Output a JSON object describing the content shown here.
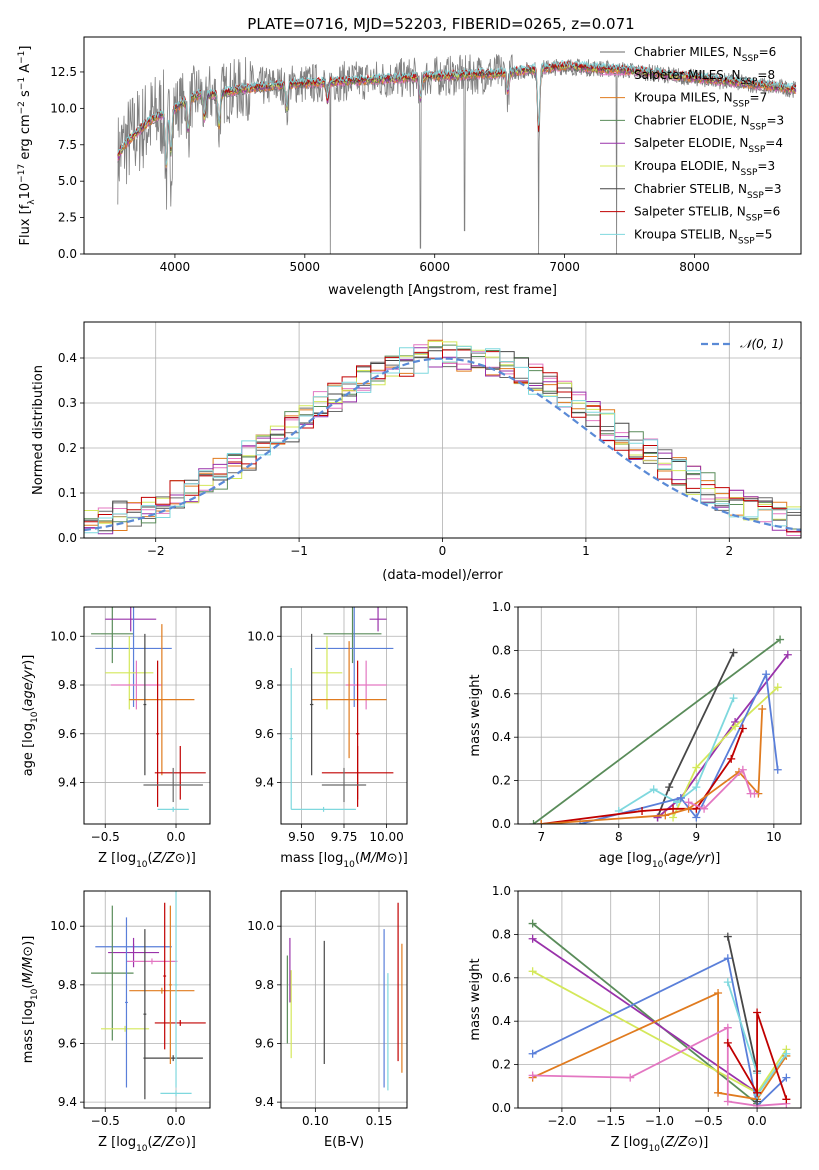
{
  "figure_title": "PLATE=0716, MJD=52203, FIBERID=0265, z=0.071",
  "colors": {
    "Chabrier MILES": "#6a6a6a",
    "Salpeter MILES": "#e377c2",
    "Kroupa MILES": "#e07b1f",
    "Chabrier ELODIE": "#5a8c5a",
    "Salpeter ELODIE": "#9932aa",
    "Kroupa ELODIE": "#d4e85a",
    "Chabrier STELIB": "#474747",
    "Salpeter STELIB": "#c00000",
    "Kroupa STELIB": "#7fd8de",
    "extra_blue": "#5a7fd9"
  },
  "chart_data": [
    {
      "id": "spectrum",
      "type": "line",
      "title": "PLATE=0716, MJD=52203, FIBERID=0265, z=0.071",
      "xlabel": "wavelength [Angstrom, rest frame]",
      "ylabel_parts": [
        "Flux [f",
        "λ",
        "10",
        "−17",
        " erg cm",
        "−2",
        " s",
        "−1",
        " A",
        "−1",
        "]"
      ],
      "xlim": [
        3300,
        8820
      ],
      "ylim": [
        0,
        14.9
      ],
      "xticks": [
        4000,
        5000,
        6000,
        7000,
        8000
      ],
      "xtick_labels": [
        "4000",
        "5000",
        "6000",
        "7000",
        "8000"
      ],
      "yticks": [
        0,
        2.5,
        5,
        7.5,
        10,
        12.5
      ],
      "ytick_labels": [
        "0.0",
        "2.5",
        "5.0",
        "7.5",
        "10.0",
        "12.5"
      ],
      "data_range": [
        3560,
        8780
      ],
      "continuum": {
        "x": [
          3560,
          3600,
          3700,
          3800,
          3900,
          4000,
          4100,
          4200,
          4300,
          4500,
          4800,
          5200,
          5600,
          6000,
          6500,
          7000,
          7500,
          8000,
          8500,
          8780
        ],
        "y": [
          6.6,
          7.4,
          8.3,
          9.1,
          9.6,
          10.0,
          10.6,
          11.0,
          10.9,
          11.3,
          11.6,
          11.8,
          12.0,
          12.2,
          12.4,
          12.9,
          12.6,
          12.1,
          11.6,
          11.3
        ]
      },
      "absorption_dips": [
        [
          3934,
          4.5
        ],
        [
          3969,
          3.5
        ],
        [
          4102,
          2.5
        ],
        [
          4227,
          2.0
        ],
        [
          4340,
          2.5
        ],
        [
          4861,
          2.0
        ],
        [
          5175,
          1.5
        ],
        [
          5890,
          1.8
        ],
        [
          6563,
          1.5
        ],
        [
          6800,
          5.0
        ]
      ],
      "spikes": [
        [
          5195,
          0.0
        ],
        [
          5890,
          0.4
        ],
        [
          6230,
          1.6
        ],
        [
          6800,
          0.0
        ],
        [
          7400,
          0.0
        ]
      ],
      "legend": [
        {
          "name": "Chabrier MILES",
          "nssp": "6"
        },
        {
          "name": "Salpeter MILES",
          "nssp": "8"
        },
        {
          "name": "Kroupa MILES",
          "nssp": "7"
        },
        {
          "name": "Chabrier ELODIE",
          "nssp": "3"
        },
        {
          "name": "Salpeter ELODIE",
          "nssp": "4"
        },
        {
          "name": "Kroupa ELODIE",
          "nssp": "3"
        },
        {
          "name": "Chabrier STELIB",
          "nssp": "3"
        },
        {
          "name": "Salpeter STELIB",
          "nssp": "6"
        },
        {
          "name": "Kroupa STELIB",
          "nssp": "5"
        }
      ],
      "legend_suffix": "SSP"
    },
    {
      "id": "residuals",
      "type": "histogram",
      "xlabel": "(data-model)/error",
      "ylabel": "Normed distribution",
      "xlim": [
        -2.5,
        2.5
      ],
      "ylim": [
        0,
        0.48
      ],
      "xticks": [
        -2,
        -1,
        0,
        1,
        2
      ],
      "xtick_labels": [
        "−2",
        "−1",
        "0",
        "1",
        "2"
      ],
      "yticks": [
        0,
        0.1,
        0.2,
        0.3,
        0.4
      ],
      "ytick_labels": [
        "0.0",
        "0.1",
        "0.2",
        "0.3",
        "0.4"
      ],
      "bin_width": 0.1,
      "bin_start": -2.5,
      "grid": true,
      "legend": "𝒩(0, 1)",
      "legend_placement": "top-right"
    },
    {
      "id": "age-vs-Z",
      "type": "errorbar",
      "xlabel": "Z [log10(Z/Z⊙)]",
      "ylabel": "age [log10(age/yr)]",
      "xlim": [
        -0.65,
        0.24
      ],
      "ylim": [
        9.23,
        10.12
      ],
      "xticks": [
        -0.5,
        0.0
      ],
      "xtick_labels": [
        "−0.5",
        "0.0"
      ],
      "yticks": [
        9.4,
        9.6,
        9.8,
        10.0
      ],
      "ytick_labels": [
        "9.4",
        "9.6",
        "9.8",
        "10.0"
      ],
      "points": [
        {
          "color": "Chabrier ELODIE",
          "x": -0.45,
          "xerr": 0.15,
          "y": 10.01,
          "yerr": 0.12
        },
        {
          "color": "Salpeter ELODIE",
          "x": -0.32,
          "xerr": 0.18,
          "y": 10.07,
          "yerr": 0.05
        },
        {
          "color": "extra_blue",
          "x": -0.3,
          "xerr": 0.27,
          "y": 9.95,
          "yerr": 0.24
        },
        {
          "color": "Kroupa ELODIE",
          "x": -0.33,
          "xerr": 0.17,
          "y": 9.85,
          "yerr": 0.15
        },
        {
          "color": "Salpeter MILES",
          "x": -0.28,
          "xerr": 0.18,
          "y": 9.8,
          "yerr": 0.1
        },
        {
          "color": "Kroupa MILES",
          "x": -0.1,
          "xerr": 0.23,
          "y": 9.74,
          "yerr": 0.31
        },
        {
          "color": "Chabrier STELIB",
          "x": -0.22,
          "xerr": 0.01,
          "y": 9.72,
          "yerr": 0.29
        },
        {
          "color": "Salpeter STELIB",
          "x": -0.13,
          "xerr": 0.01,
          "y": 9.6,
          "yerr": 0.3
        },
        {
          "color": "Salpeter STELIB",
          "x": 0.03,
          "xerr": 0.18,
          "y": 9.44,
          "yerr": 0.11
        },
        {
          "color": "Chabrier MILES",
          "x": -0.02,
          "xerr": 0.21,
          "y": 9.39,
          "yerr": 0.07
        },
        {
          "color": "Kroupa STELIB",
          "x": -0.02,
          "xerr": 0.11,
          "y": 9.29,
          "yerr": 0.01
        }
      ]
    },
    {
      "id": "age-vs-mass",
      "type": "errorbar",
      "xlabel": "mass [log10(M/M⊙)]",
      "ylabel": "",
      "xlim": [
        9.38,
        10.12
      ],
      "ylim": [
        9.23,
        10.12
      ],
      "xticks": [
        9.5,
        9.75,
        10.0
      ],
      "xtick_labels": [
        "9.50",
        "9.75",
        "10.00"
      ],
      "yticks": [
        9.4,
        9.6,
        9.8,
        10.0
      ],
      "ytick_labels": [
        "9.4",
        "9.6",
        "9.8",
        "10.0"
      ],
      "points": [
        {
          "color": "Salpeter ELODIE",
          "x": 9.95,
          "xerr": 0.05,
          "y": 10.07,
          "yerr": 0.05
        },
        {
          "color": "Chabrier ELODIE",
          "x": 9.8,
          "xerr": 0.17,
          "y": 10.01,
          "yerr": 0.12
        },
        {
          "color": "extra_blue",
          "x": 9.81,
          "xerr": 0.23,
          "y": 9.95,
          "yerr": 0.24
        },
        {
          "color": "Kroupa ELODIE",
          "x": 9.65,
          "xerr": 0.09,
          "y": 9.85,
          "yerr": 0.15
        },
        {
          "color": "Salpeter MILES",
          "x": 9.88,
          "xerr": 0.12,
          "y": 9.8,
          "yerr": 0.1
        },
        {
          "color": "Kroupa MILES",
          "x": 9.78,
          "xerr": 0.22,
          "y": 9.74,
          "yerr": 0.24
        },
        {
          "color": "Chabrier STELIB",
          "x": 9.56,
          "xerr": 0.01,
          "y": 9.72,
          "yerr": 0.29
        },
        {
          "color": "Salpeter STELIB",
          "x": 9.83,
          "xerr": 0.01,
          "y": 9.6,
          "yerr": 0.3
        },
        {
          "color": "Salpeter STELIB",
          "x": 9.83,
          "xerr": 0.21,
          "y": 9.44,
          "yerr": 0.11
        },
        {
          "color": "Chabrier MILES",
          "x": 9.75,
          "xerr": 0.13,
          "y": 9.39,
          "yerr": 0.07
        },
        {
          "color": "Kroupa STELIB",
          "x": 9.63,
          "xerr": 0.19,
          "y": 9.29,
          "yerr": 0.01
        },
        {
          "color": "Kroupa STELIB",
          "x": 9.44,
          "xerr": 0.01,
          "y": 9.58,
          "yerr": 0.29
        }
      ]
    },
    {
      "id": "weight-vs-age",
      "type": "line",
      "xlabel": "age [log10(age/yr)]",
      "ylabel": "mass weight",
      "xlim": [
        6.7,
        10.35
      ],
      "ylim": [
        0,
        1
      ],
      "xticks": [
        7,
        8,
        9,
        10
      ],
      "xtick_labels": [
        "7",
        "8",
        "9",
        "10"
      ],
      "yticks": [
        0,
        0.2,
        0.4,
        0.6,
        0.8,
        1.0
      ],
      "ytick_labels": [
        "0.0",
        "0.2",
        "0.4",
        "0.6",
        "0.8",
        "1.0"
      ],
      "series": [
        {
          "color": "Chabrier ELODIE",
          "x": [
            6.9,
            10.08
          ],
          "y": [
            0.0,
            0.85
          ]
        },
        {
          "color": "Chabrier STELIB",
          "x": [
            8.5,
            8.65,
            9.48
          ],
          "y": [
            0.03,
            0.17,
            0.79
          ]
        },
        {
          "color": "Salpeter ELODIE",
          "x": [
            8.5,
            8.8,
            9.5,
            10.18
          ],
          "y": [
            0.03,
            0.12,
            0.47,
            0.78
          ]
        },
        {
          "color": "Kroupa ELODIE",
          "x": [
            8.7,
            9.0,
            9.5,
            10.05
          ],
          "y": [
            0.03,
            0.26,
            0.45,
            0.63
          ]
        },
        {
          "color": "Kroupa STELIB",
          "x": [
            8.0,
            8.45,
            8.75,
            9.0,
            9.48
          ],
          "y": [
            0.06,
            0.16,
            0.1,
            0.17,
            0.58
          ]
        },
        {
          "color": "extra_blue",
          "x": [
            7.5,
            8.8,
            9.0,
            9.9,
            10.05
          ],
          "y": [
            0.0,
            0.12,
            0.03,
            0.69,
            0.25
          ]
        },
        {
          "color": "Salpeter STELIB",
          "x": [
            7.0,
            8.3,
            8.7,
            9.0,
            9.45,
            9.6
          ],
          "y": [
            0.0,
            0.06,
            0.07,
            0.07,
            0.3,
            0.44
          ]
        },
        {
          "color": "Kroupa MILES",
          "x": [
            7.0,
            8.6,
            8.9,
            9.55,
            9.8,
            9.85
          ],
          "y": [
            0.0,
            0.04,
            0.07,
            0.24,
            0.14,
            0.53
          ]
        },
        {
          "color": "Salpeter MILES",
          "x": [
            8.9,
            9.1,
            9.6,
            9.7,
            9.75
          ],
          "y": [
            0.1,
            0.07,
            0.25,
            0.14,
            0.14
          ]
        }
      ]
    },
    {
      "id": "mass-vs-Z",
      "type": "errorbar",
      "xlabel": "Z [log10(Z/Z⊙)]",
      "ylabel": "mass [log10(M/M⊙)]",
      "xlim": [
        -0.65,
        0.24
      ],
      "ylim": [
        9.38,
        10.12
      ],
      "xticks": [
        -0.5,
        0.0
      ],
      "xtick_labels": [
        "−0.5",
        "0.0"
      ],
      "yticks": [
        9.4,
        9.6,
        9.8,
        10.0
      ],
      "ytick_labels": [
        "9.4",
        "9.6",
        "9.8",
        "10.0"
      ],
      "points": [
        {
          "color": "extra_blue",
          "x": -0.3,
          "xerr": 0.27,
          "y": 9.93,
          "yerr": 0.01
        },
        {
          "color": "Salpeter ELODIE",
          "x": -0.3,
          "xerr": 0.18,
          "y": 9.91,
          "yerr": 0.05
        },
        {
          "color": "Salpeter MILES",
          "x": -0.17,
          "xerr": 0.18,
          "y": 9.88,
          "yerr": 0.01
        },
        {
          "color": "Chabrier ELODIE",
          "x": -0.45,
          "xerr": 0.15,
          "y": 9.84,
          "yerr": 0.23
        },
        {
          "color": "Kroupa MILES",
          "x": -0.1,
          "xerr": 0.23,
          "y": 9.78,
          "yerr": 0.01
        },
        {
          "color": "Kroupa ELODIE",
          "x": -0.36,
          "xerr": 0.17,
          "y": 9.65,
          "yerr": 0.01
        },
        {
          "color": "Salpeter STELIB",
          "x": 0.03,
          "xerr": 0.18,
          "y": 9.67,
          "yerr": 0.01
        },
        {
          "color": "Chabrier STELIB",
          "x": -0.02,
          "xerr": 0.21,
          "y": 9.55,
          "yerr": 0.01
        },
        {
          "color": "Kroupa STELIB",
          "x": 0.0,
          "xerr": 0.11,
          "y": 9.43,
          "yerr": 0.01
        },
        {
          "color": "Chabrier STELIB",
          "x": -0.22,
          "xerr": 0.01,
          "y": 9.7,
          "yerr": 0.29
        },
        {
          "color": "Salpeter STELIB",
          "x": -0.08,
          "xerr": 0.01,
          "y": 9.83,
          "yerr": 0.25
        },
        {
          "color": "extra_blue",
          "x": -0.35,
          "xerr": 0.01,
          "y": 9.74,
          "yerr": 0.29
        },
        {
          "color": "Kroupa MILES",
          "x": -0.04,
          "xerr": 0.01,
          "y": 9.8,
          "yerr": 0.27
        },
        {
          "color": "Kroupa STELIB",
          "x": 0.0,
          "xerr": 0.01,
          "y": 9.8,
          "yerr": 0.35
        }
      ]
    },
    {
      "id": "mass-vs-EBV",
      "type": "errorbar",
      "xlabel": "E(B-V)",
      "ylabel": "",
      "xlim": [
        0.073,
        0.172
      ],
      "ylim": [
        9.38,
        10.12
      ],
      "xticks": [
        0.1,
        0.15
      ],
      "xtick_labels": [
        "0.10",
        "0.15"
      ],
      "yticks": [
        9.4,
        9.6,
        9.8,
        10.0
      ],
      "ytick_labels": [
        "9.4",
        "9.6",
        "9.8",
        "10.0"
      ],
      "points": [
        {
          "color": "Chabrier ELODIE",
          "x": 0.078,
          "xerr": 0,
          "y": 9.75,
          "yerr": 0.15
        },
        {
          "color": "Salpeter ELODIE",
          "x": 0.08,
          "xerr": 0,
          "y": 9.85,
          "yerr": 0.11
        },
        {
          "color": "Kroupa ELODIE",
          "x": 0.081,
          "xerr": 0,
          "y": 9.7,
          "yerr": 0.15
        },
        {
          "color": "Chabrier STELIB",
          "x": 0.107,
          "xerr": 0,
          "y": 9.74,
          "yerr": 0.21
        },
        {
          "color": "extra_blue",
          "x": 0.154,
          "xerr": 0,
          "y": 9.72,
          "yerr": 0.27
        },
        {
          "color": "Kroupa STELIB",
          "x": 0.157,
          "xerr": 0,
          "y": 9.64,
          "yerr": 0.2
        },
        {
          "color": "Salpeter STELIB",
          "x": 0.165,
          "xerr": 0,
          "y": 9.81,
          "yerr": 0.27
        },
        {
          "color": "Kroupa MILES",
          "x": 0.168,
          "xerr": 0,
          "y": 9.72,
          "yerr": 0.22
        }
      ]
    },
    {
      "id": "weight-vs-Z",
      "type": "line",
      "xlabel": "Z [log10(Z/Z⊙)]",
      "ylabel": "mass weight",
      "xlim": [
        -2.45,
        0.45
      ],
      "ylim": [
        0,
        1
      ],
      "xticks": [
        -2.0,
        -1.5,
        -1.0,
        -0.5,
        0.0
      ],
      "xtick_labels": [
        "−2.0",
        "−1.5",
        "−1.0",
        "−0.5",
        "0.0"
      ],
      "yticks": [
        0,
        0.2,
        0.4,
        0.6,
        0.8,
        1.0
      ],
      "ytick_labels": [
        "0.0",
        "0.2",
        "0.4",
        "0.6",
        "0.8",
        "1.0"
      ],
      "series": [
        {
          "color": "Chabrier ELODIE",
          "x": [
            -2.3,
            0.0
          ],
          "y": [
            0.85,
            0.02
          ]
        },
        {
          "color": "Salpeter ELODIE",
          "x": [
            -2.3,
            0.0,
            0.0
          ],
          "y": [
            0.78,
            0.07,
            0.01
          ]
        },
        {
          "color": "Kroupa ELODIE",
          "x": [
            -2.3,
            0.0,
            0.3
          ],
          "y": [
            0.63,
            0.07,
            0.27
          ]
        },
        {
          "color": "extra_blue",
          "x": [
            -2.3,
            -0.3,
            0.0,
            0.3
          ],
          "y": [
            0.25,
            0.69,
            0.01,
            0.14
          ]
        },
        {
          "color": "Kroupa MILES",
          "x": [
            -2.3,
            -0.4,
            -0.4,
            0.0,
            0.3
          ],
          "y": [
            0.14,
            0.53,
            0.07,
            0.04,
            0.24
          ]
        },
        {
          "color": "Salpeter MILES",
          "x": [
            -2.3,
            -1.3,
            -0.3,
            -0.3,
            0.0,
            0.3
          ],
          "y": [
            0.15,
            0.14,
            0.37,
            0.03,
            0.01,
            0.02
          ]
        },
        {
          "color": "Chabrier STELIB",
          "x": [
            -0.3,
            0.0,
            0.0
          ],
          "y": [
            0.79,
            0.17,
            0.03
          ]
        },
        {
          "color": "Kroupa STELIB",
          "x": [
            -0.3,
            0.0,
            0.0,
            0.3
          ],
          "y": [
            0.58,
            0.16,
            0.06,
            0.25
          ]
        },
        {
          "color": "Salpeter STELIB",
          "x": [
            -0.3,
            0.0,
            0.0,
            0.3
          ],
          "y": [
            0.3,
            0.07,
            0.44,
            0.04
          ]
        }
      ]
    }
  ]
}
